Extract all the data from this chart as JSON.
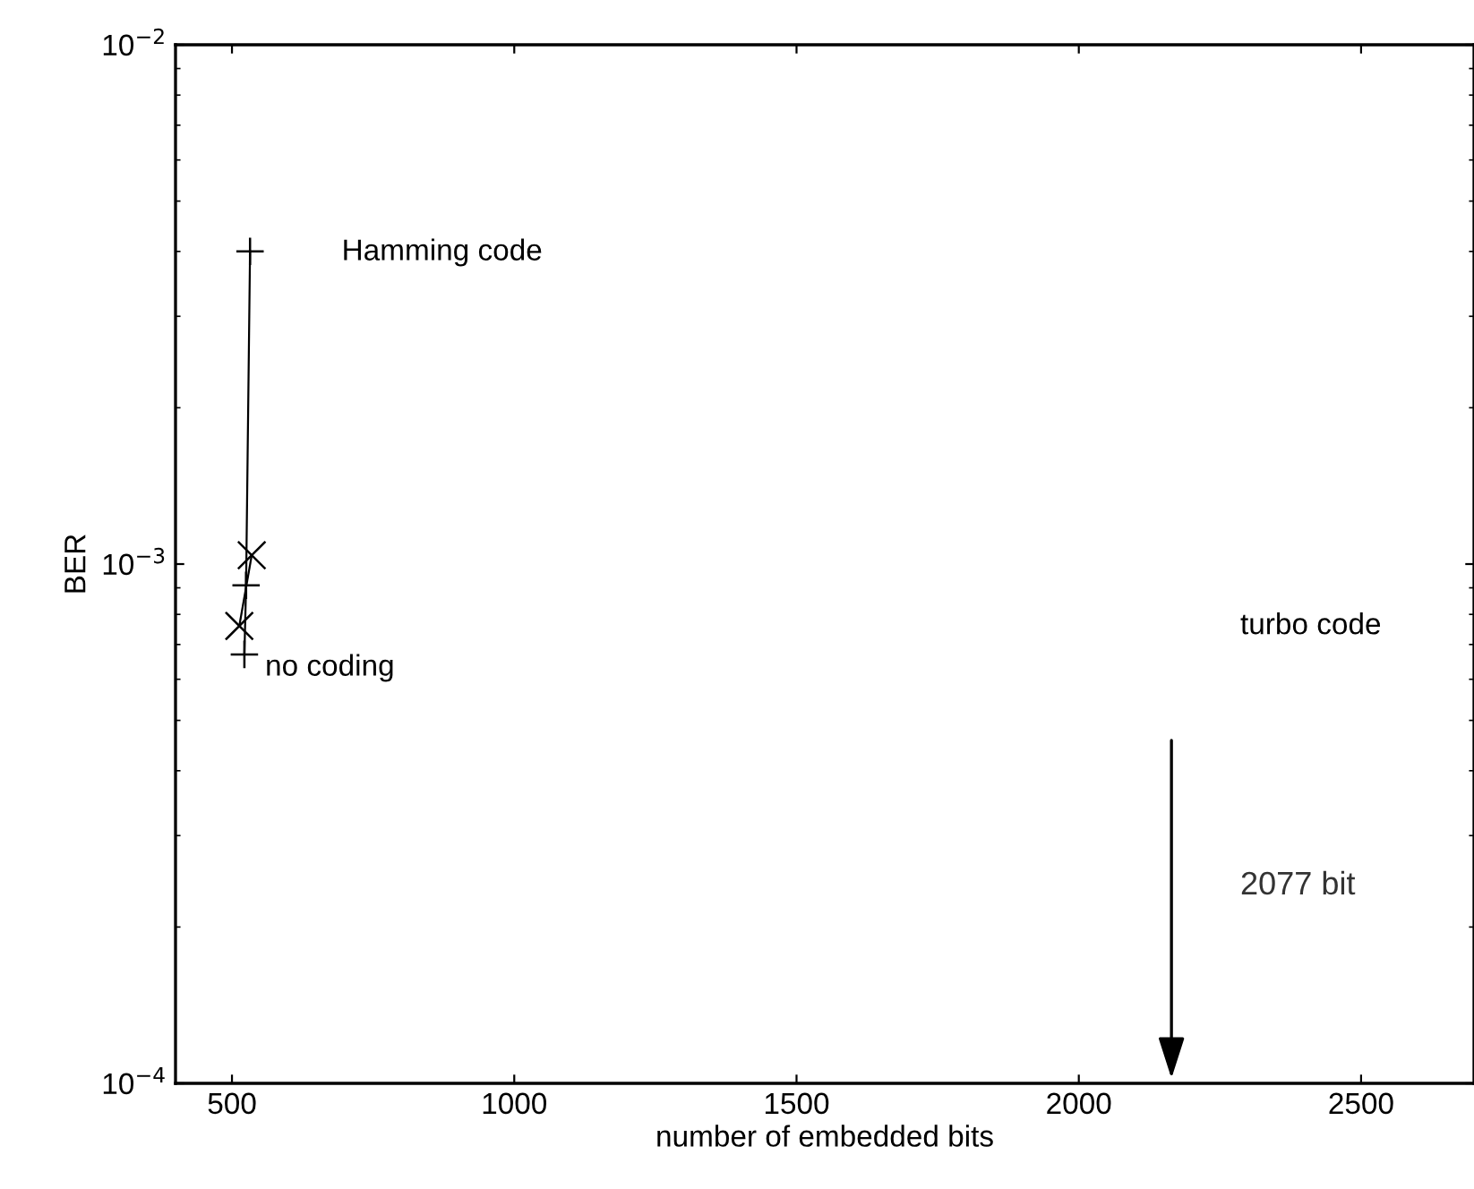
{
  "chart_data": {
    "type": "line",
    "xlabel": "number of embedded bits",
    "ylabel": "BER",
    "log": "y",
    "grid": false,
    "legend": false,
    "xlim": [
      400,
      2700
    ],
    "xticks": [
      500,
      1000,
      1500,
      2000,
      2500
    ],
    "ylim": [
      0.0001,
      0.01
    ],
    "yticks": [
      {
        "value": 0.0001,
        "label": "10$^{−4}$"
      },
      {
        "value": 0.001,
        "label": "10$^{−3}$"
      },
      {
        "value": 0.01,
        "label": "10$^{−2}$"
      }
    ],
    "series": [
      {
        "color": "#000000",
        "marker": "plus",
        "x": [
          532,
          525,
          522
        ],
        "values": [
          0.004,
          0.00091,
          0.00067
        ]
      },
      {
        "color": "#000000",
        "marker": "cross",
        "x": [
          535,
          513
        ],
        "values": [
          0.00104,
          0.00076
        ]
      }
    ],
    "annotations": [
      "Hamming code",
      "no coding",
      "turbo code",
      "2077 bit"
    ]
  }
}
